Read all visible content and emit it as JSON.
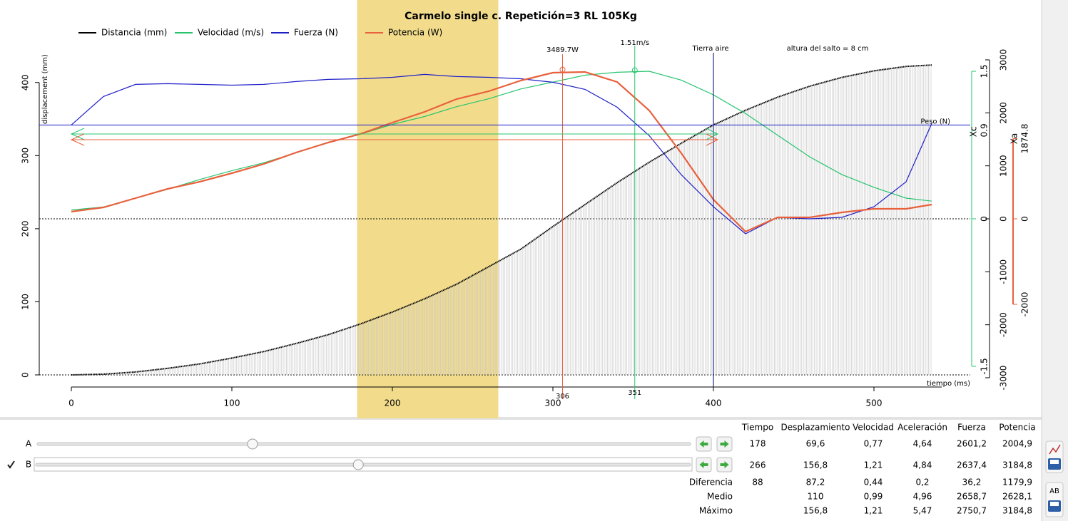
{
  "chart_data": {
    "type": "line",
    "title": "Carmelo single c. Repetición=3 RL 105Kg",
    "xlabel": "tiempo (ms)",
    "ylabel": "displacement (mm)",
    "x": [
      0,
      20,
      40,
      60,
      80,
      100,
      120,
      140,
      160,
      180,
      200,
      220,
      240,
      260,
      280,
      300,
      320,
      340,
      360,
      380,
      400,
      420,
      440,
      460,
      480,
      500,
      520,
      536
    ],
    "xlim": [
      0,
      540
    ],
    "xticks": [
      0,
      100,
      200,
      300,
      400,
      500
    ],
    "ylim": [
      0,
      430
    ],
    "yticks": [
      0,
      100,
      200,
      300,
      400
    ],
    "y2lim": [
      -3000,
      3000
    ],
    "y2ticks": [
      -3000,
      -2000,
      -1000,
      0,
      1000,
      2000,
      3000
    ],
    "y3lim": [
      -1.5,
      1.5
    ],
    "y3ticks": [
      -1.5,
      0,
      0.9,
      1.5
    ],
    "y3label": "Xc",
    "y4lim": [
      -3700,
      3700
    ],
    "y4ticks": [
      -2000,
      0,
      1874.8
    ],
    "y4label": "Xa",
    "band": [
      178,
      266
    ],
    "band_color": "#f2dc8c",
    "series": [
      {
        "name": "Distancia (mm)",
        "color": "#000000",
        "values": [
          0,
          1,
          4,
          9,
          15,
          23,
          32,
          43,
          55,
          69.6,
          86,
          104,
          124,
          148,
          172,
          203,
          233,
          263,
          291,
          317,
          342,
          362,
          380,
          395,
          407,
          416,
          422,
          424
        ]
      },
      {
        "name": "Velocidad (m/s)",
        "color": "#27c46e",
        "axis": "y3",
        "values": [
          0.09,
          0.12,
          0.21,
          0.3,
          0.4,
          0.49,
          0.57,
          0.67,
          0.78,
          0.86,
          0.96,
          1.04,
          1.14,
          1.22,
          1.32,
          1.39,
          1.46,
          1.49,
          1.5,
          1.41,
          1.26,
          1.07,
          0.85,
          0.63,
          0.45,
          0.32,
          0.21,
          0.18
        ]
      },
      {
        "name": "Fuerza (N)",
        "color": "#1f1fc8",
        "axis": "y2",
        "values": [
          1772,
          2309,
          2537,
          2550,
          2537,
          2523,
          2537,
          2591,
          2631,
          2644,
          2671,
          2725,
          2685,
          2671,
          2644,
          2577,
          2443,
          2107,
          1570,
          832,
          228,
          -282,
          27,
          0,
          27,
          228,
          698,
          1799
        ]
      },
      {
        "name": "Potencia (W)",
        "color": "#e8603c",
        "axis": "y4",
        "values": [
          167,
          267,
          483,
          700,
          867,
          1067,
          1283,
          1550,
          1783,
          1983,
          2250,
          2500,
          2800,
          2983,
          3233,
          3417,
          3433,
          3200,
          2533,
          1533,
          450,
          -300,
          33,
          33,
          150,
          233,
          233,
          333
        ]
      }
    ],
    "annotations": [
      {
        "text": "3489.7W",
        "x": 306,
        "value": 3489.7,
        "axis": "y4",
        "color": "#e8603c"
      },
      {
        "text": "1.51m/s",
        "x": 351,
        "value": 1.51,
        "axis": "y3",
        "color": "#27c46e"
      },
      {
        "text": "Tierra  aire",
        "x": 400,
        "color": "#000066"
      },
      {
        "text": "altura del salto = 8 cm",
        "color": "#1f1fc8"
      },
      {
        "text": "Peso (N)",
        "value": 1770,
        "axis": "y2",
        "color": "#1f1fc8"
      }
    ]
  },
  "controls": {
    "sliders": [
      {
        "label": "A"
      },
      {
        "label": "B",
        "checked": true
      }
    ],
    "button_text": "AB"
  },
  "table": {
    "headers": [
      "Tiempo",
      "Desplazamiento",
      "Velocidad",
      "Aceleración",
      "Fuerza",
      "Potencia"
    ],
    "rows": [
      {
        "cells": [
          "178",
          "69,6",
          "0,77",
          "4,64",
          "2601,2",
          "2004,9"
        ]
      },
      {
        "cells": [
          "266",
          "156,8",
          "1,21",
          "4,84",
          "2637,4",
          "3184,8"
        ]
      },
      {
        "label": "Diferencia",
        "cells": [
          "88",
          "87,2",
          "0,44",
          "0,2",
          "36,2",
          "1179,9"
        ]
      },
      {
        "label": "Medio",
        "cells": [
          null,
          "110",
          "0,99",
          "4,96",
          "2658,7",
          "2628,1"
        ]
      },
      {
        "label": "Máximo",
        "cells": [
          null,
          "156,8",
          "1,21",
          "5,47",
          "2750,7",
          "3184,8"
        ]
      }
    ]
  }
}
